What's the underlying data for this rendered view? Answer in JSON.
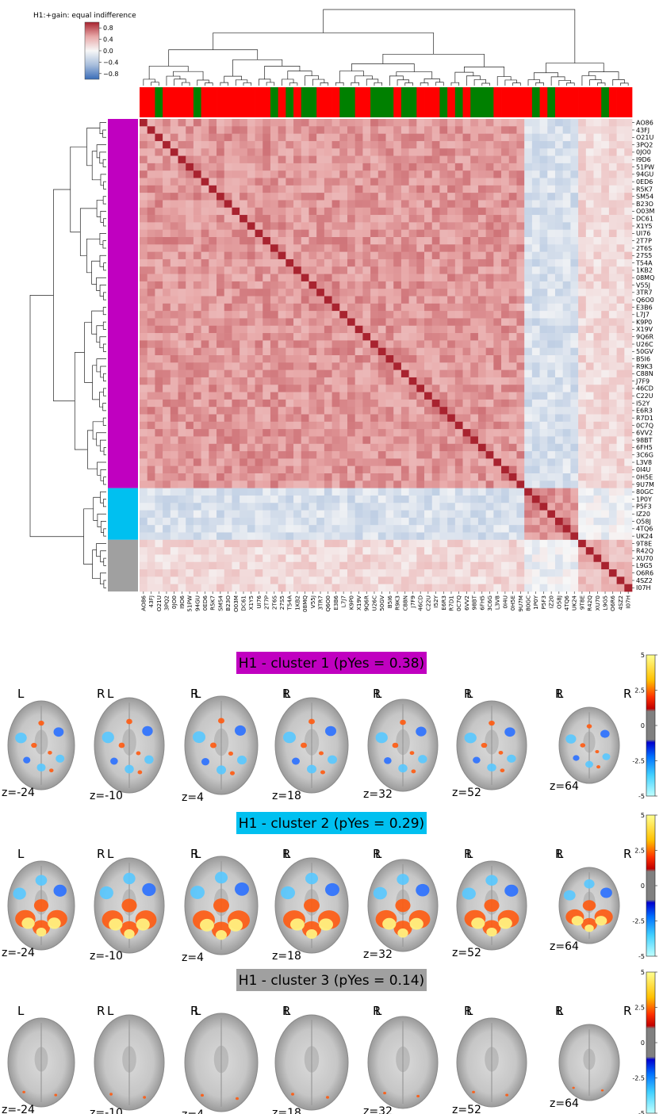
{
  "chart_data": [
    {
      "type": "heatmap",
      "title": "",
      "colorbar": {
        "label": "H1:+gain: equal indifference",
        "ticks": [
          "0.8",
          "0.4",
          "0.0",
          "−0.4",
          "−0.8"
        ],
        "range": [
          -1,
          1
        ]
      },
      "labels": [
        "AO86",
        "43FJ",
        "O21U",
        "3PQ2",
        "0JO0",
        "I9D6",
        "51PW",
        "94GU",
        "0ED6",
        "R5K7",
        "SM54",
        "B23O",
        "O03M",
        "DC61",
        "X1Y5",
        "UI76",
        "2T7P",
        "2T6S",
        "27S5",
        "T54A",
        "1KB2",
        "08MQ",
        "V55J",
        "3TR7",
        "Q6O0",
        "E3B6",
        "L7J7",
        "K9P0",
        "X19V",
        "9Q6R",
        "U26C",
        "50GV",
        "B5I6",
        "R9K3",
        "C88N",
        "J7F9",
        "46CD",
        "C22U",
        "I52Y",
        "E6R3",
        "R7D1",
        "0C7Q",
        "6VV2",
        "98BT",
        "6FH5",
        "3C6G",
        "L3V8",
        "0I4U",
        "0H5E",
        "9U7M",
        "80GC",
        "1P0Y",
        "P5F3",
        "IZ20",
        "O58J",
        "4TQ6",
        "UK24",
        "9T8E",
        "R42Q",
        "XU70",
        "L9G5",
        "O6R6",
        "4SZ2",
        "I07H"
      ],
      "column_labels": [
        "AO86",
        "43FJ",
        "O21U",
        "3PQ2",
        "0JO0",
        "I9D6",
        "51PW",
        "94GU",
        "0ED6",
        "R5K7",
        "SM54",
        "B23O",
        "O03M",
        "DC61",
        "X1Y5",
        "UI76",
        "2T7P",
        "2T6S",
        "27S5",
        "T54A",
        "1KB2",
        "08MQ",
        "V55J",
        "3TR7",
        "Q6O0",
        "E3B6",
        "L7J7",
        "K9P0",
        "X19V",
        "9Q6R",
        "U26C",
        "50GV",
        "B5I6",
        "R9K3",
        "C88N",
        "J7F9",
        "46CD",
        "C22U",
        "I52Y",
        "E6R3",
        "R7D1",
        "0C7Q",
        "6VV2",
        "98BT",
        "6FH5",
        "3C6G",
        "L3V8",
        "0I4U",
        "0H5E",
        "9U7M",
        "80GC",
        "1P0Y",
        "P5F3",
        "IZ20",
        "O58J",
        "4TQ6",
        "UK24",
        "9T8E",
        "R42Q",
        "XU70",
        "L9G5",
        "O6R6",
        "4SZ2",
        "I07H"
      ],
      "clusters": {
        "sizes": [
          50,
          7,
          7
        ],
        "colors": [
          "#c000c0",
          "#00c0f0",
          "#a0a0a0"
        ]
      },
      "column_groups": [
        "r",
        "r",
        "g",
        "r",
        "r",
        "r",
        "r",
        "g",
        "r",
        "r",
        "r",
        "r",
        "r",
        "r",
        "r",
        "r",
        "r",
        "g",
        "r",
        "g",
        "r",
        "g",
        "g",
        "r",
        "r",
        "r",
        "g",
        "g",
        "r",
        "r",
        "g",
        "g",
        "g",
        "r",
        "g",
        "g",
        "r",
        "r",
        "r",
        "g",
        "r",
        "g",
        "r",
        "g",
        "g",
        "g",
        "r",
        "r",
        "r",
        "r",
        "r",
        "g",
        "r",
        "g",
        "r",
        "r",
        "r",
        "r",
        "r",
        "r",
        "g",
        "r",
        "r",
        "r"
      ],
      "column_group_colors": {
        "r": "#ff0000",
        "g": "#008000"
      },
      "mean_correlation": [
        [
          0.55,
          -0.2,
          0.2
        ],
        [
          -0.2,
          0.6,
          -0.05
        ],
        [
          0.2,
          -0.05,
          0.4
        ]
      ]
    },
    {
      "type": "other",
      "panels": [
        {
          "title": "H1 - cluster 1 (pYes = 0.38)",
          "color": "#c000c0"
        },
        {
          "title": "H1 - cluster 2 (pYes = 0.29)",
          "color": "#00c0f0"
        },
        {
          "title": "H1 - cluster 3 (pYes = 0.14)",
          "color": "#a0a0a0"
        }
      ],
      "slices": [
        "z=-24",
        "z=-10",
        "z=4",
        "z=18",
        "z=32",
        "z=52",
        "z=64"
      ],
      "side_left": "L",
      "side_right": "R",
      "colorbar": {
        "ticks": [
          "5",
          "2.5",
          "0",
          "-2.5",
          "-5"
        ],
        "range": [
          -5,
          5
        ]
      }
    }
  ]
}
